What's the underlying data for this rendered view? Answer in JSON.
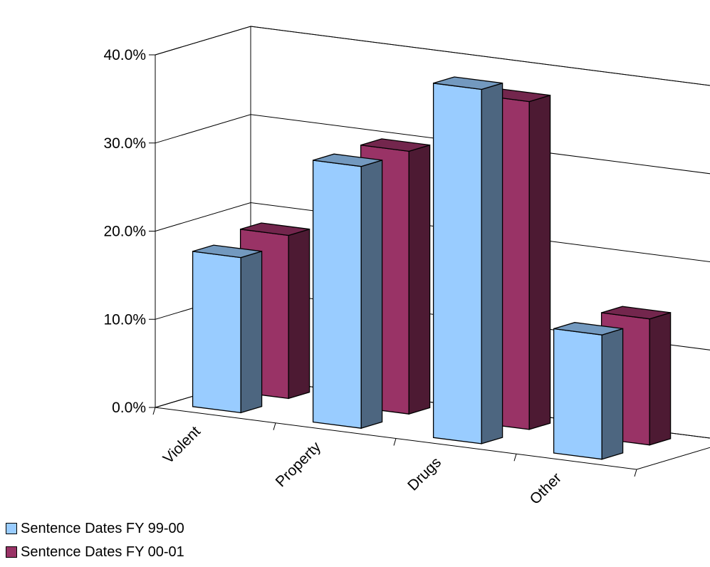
{
  "chart_data": {
    "type": "bar",
    "categories": [
      "Violent",
      "Property",
      "Drugs",
      "Other"
    ],
    "series": [
      {
        "name": "Sentence Dates FY 99-00",
        "values": [
          17.6,
          29.7,
          40.2,
          14.1
        ],
        "color": "#99CCFF"
      },
      {
        "name": "Sentence Dates FY 00-01",
        "values": [
          18.5,
          29.8,
          37.2,
          14.3
        ],
        "color": "#993366"
      }
    ],
    "title": "",
    "xlabel": "",
    "ylabel": "",
    "ylim": [
      0,
      40
    ],
    "yticks": [
      "0.0%",
      "10.0%",
      "20.0%",
      "30.0%",
      "40.0%"
    ],
    "grid": true,
    "legend_position": "bottom-left",
    "projection": "3d"
  }
}
